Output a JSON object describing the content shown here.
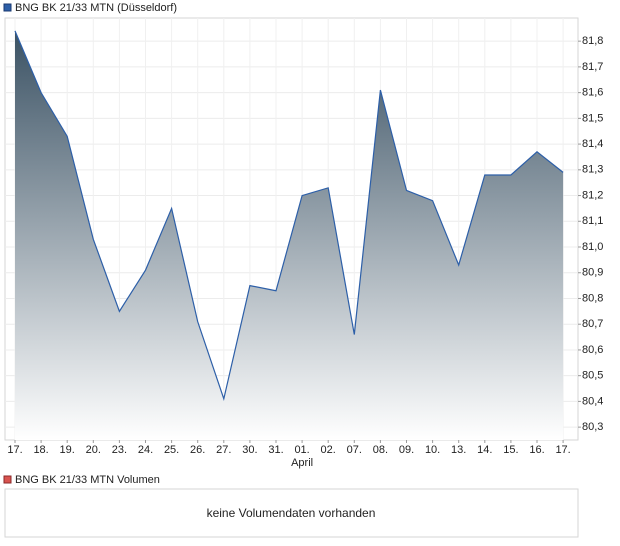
{
  "chart_data": {
    "type": "area",
    "title": "BNG BK 21/33 MTN (Düsseldorf)",
    "color": "#2d5fa8",
    "categories": [
      "17.",
      "18.",
      "19.",
      "20.",
      "23.",
      "24.",
      "25.",
      "26.",
      "27.",
      "30.",
      "31.",
      "01.",
      "02.",
      "07.",
      "08.",
      "09.",
      "10.",
      "13.",
      "14.",
      "15.",
      "16.",
      "17."
    ],
    "month_labels": [
      null,
      null,
      null,
      null,
      null,
      null,
      null,
      null,
      null,
      null,
      null,
      "April",
      null,
      null,
      null,
      null,
      null,
      null,
      null,
      null,
      null,
      null
    ],
    "values": [
      81.84,
      81.6,
      81.43,
      81.03,
      80.75,
      80.91,
      81.15,
      80.71,
      80.41,
      80.85,
      80.83,
      81.2,
      81.23,
      80.66,
      81.61,
      81.22,
      81.18,
      80.93,
      81.28,
      81.28,
      81.37,
      81.29
    ],
    "ylim": [
      80.25,
      81.89
    ],
    "yticks": [
      {
        "value": 80.3,
        "label": "80,3"
      },
      {
        "value": 80.4,
        "label": "80,4"
      },
      {
        "value": 80.5,
        "label": "80,5"
      },
      {
        "value": 80.6,
        "label": "80,6"
      },
      {
        "value": 80.7,
        "label": "80,7"
      },
      {
        "value": 80.8,
        "label": "80,8"
      },
      {
        "value": 80.9,
        "label": "80,9"
      },
      {
        "value": 81.0,
        "label": "81,0"
      },
      {
        "value": 81.1,
        "label": "81,1"
      },
      {
        "value": 81.2,
        "label": "81,2"
      },
      {
        "value": 81.3,
        "label": "81,3"
      },
      {
        "value": 81.4,
        "label": "81,4"
      },
      {
        "value": 81.5,
        "label": "81,5"
      },
      {
        "value": 81.6,
        "label": "81,6"
      },
      {
        "value": 81.7,
        "label": "81,7"
      },
      {
        "value": 81.8,
        "label": "81,8"
      }
    ],
    "grid": true
  },
  "volume_panel": {
    "title": "BNG BK 21/33 MTN Volumen",
    "message": "keine Volumendaten vorhanden",
    "color": "#d9534f"
  }
}
